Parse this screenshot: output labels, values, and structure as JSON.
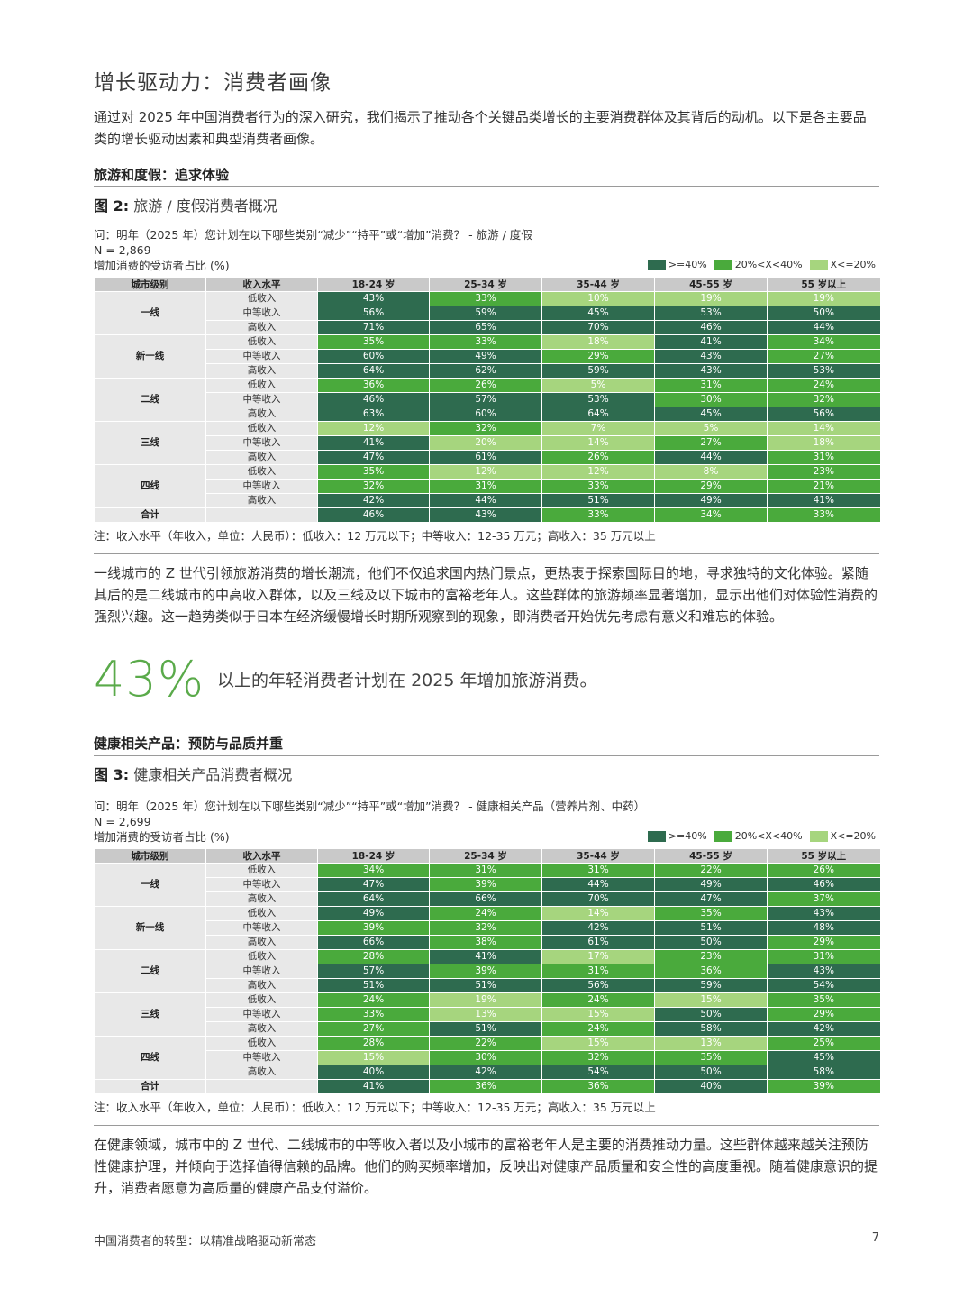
{
  "header": {
    "title": "增长驱动力：消费者画像"
  },
  "intro": "通过对 2025 年中国消费者行为的深入研究，我们揭示了推动各个关键品类增长的主要消费群体及其背后的动机。以下是各主要品类的增长驱动因素和典型消费者画像。",
  "legend": {
    "high": ">=40%",
    "mid": "20%<X<40%",
    "low": "X<=20%"
  },
  "colors": {
    "high": "#2e6b4f",
    "mid": "#4aaa3c",
    "low": "#a6d57e"
  },
  "table_headers": [
    "城市级别",
    "收入水平",
    "18-24 岁",
    "25-34 岁",
    "35-44 岁",
    "45-55 岁",
    "55 岁以上"
  ],
  "income_levels": [
    "低收入",
    "中等收入",
    "高收入"
  ],
  "cities": [
    "一线",
    "新一线",
    "二线",
    "三线",
    "四线"
  ],
  "total_label": "合计",
  "note": "注：收入水平（年收入，单位：人民币）：低收入：12 万元以下；中等收入：12-35 万元；高收入：35 万元以上",
  "section1": {
    "title": "旅游和度假：追求体验",
    "fig_label": "图 2:",
    "fig_title": "旅游 / 度假消费者概况",
    "question": "问：明年（2025 年）您计划在以下哪些类别“减少”“持平”或“增加”消费？ - 旅游 / 度假",
    "n": "N = 2,869",
    "metric": "增加消费的受访者占比 (%)",
    "rows": [
      [
        "43%",
        "33%",
        "10%",
        "19%",
        "19%"
      ],
      [
        "56%",
        "59%",
        "45%",
        "53%",
        "50%"
      ],
      [
        "71%",
        "65%",
        "70%",
        "46%",
        "44%"
      ],
      [
        "35%",
        "33%",
        "18%",
        "41%",
        "34%"
      ],
      [
        "60%",
        "49%",
        "29%",
        "43%",
        "27%"
      ],
      [
        "64%",
        "62%",
        "59%",
        "43%",
        "53%"
      ],
      [
        "36%",
        "26%",
        "5%",
        "31%",
        "24%"
      ],
      [
        "46%",
        "57%",
        "53%",
        "30%",
        "32%"
      ],
      [
        "63%",
        "60%",
        "64%",
        "45%",
        "56%"
      ],
      [
        "12%",
        "32%",
        "7%",
        "5%",
        "14%"
      ],
      [
        "41%",
        "20%",
        "14%",
        "27%",
        "18%"
      ],
      [
        "47%",
        "61%",
        "26%",
        "44%",
        "31%"
      ],
      [
        "35%",
        "12%",
        "12%",
        "8%",
        "23%"
      ],
      [
        "32%",
        "31%",
        "33%",
        "29%",
        "21%"
      ],
      [
        "42%",
        "44%",
        "51%",
        "49%",
        "41%"
      ]
    ],
    "total": [
      "46%",
      "43%",
      "33%",
      "34%",
      "33%"
    ],
    "body": "一线城市的 Z 世代引领旅游消费的增长潮流，他们不仅追求国内热门景点，更热衷于探索国际目的地，寻求独特的文化体验。紧随其后的是二线城市的中高收入群体，以及三线及以下城市的富裕老年人。这些群体的旅游频率显著增加，显示出他们对体验性消费的强烈兴趣。这一趋势类似于日本在经济缓慢增长时期所观察到的现象，即消费者开始优先考虑有意义和难忘的体验。",
    "stat_num": "43%",
    "stat_text": "以上的年轻消费者计划在 2025 年增加旅游消费。"
  },
  "section2": {
    "title": "健康相关产品：预防与品质并重",
    "fig_label": "图 3:",
    "fig_title": "健康相关产品消费者概况",
    "question": "问：明年（2025 年）您计划在以下哪些类别“减少”“持平”或“增加”消费？ - 健康相关产品（营养片剂、中药）",
    "n": "N = 2,699",
    "metric": "增加消费的受访者占比 (%)",
    "rows": [
      [
        "34%",
        "31%",
        "31%",
        "22%",
        "26%"
      ],
      [
        "47%",
        "39%",
        "44%",
        "49%",
        "46%"
      ],
      [
        "64%",
        "66%",
        "70%",
        "47%",
        "37%"
      ],
      [
        "49%",
        "24%",
        "14%",
        "35%",
        "43%"
      ],
      [
        "39%",
        "32%",
        "42%",
        "51%",
        "48%"
      ],
      [
        "66%",
        "38%",
        "61%",
        "50%",
        "29%"
      ],
      [
        "28%",
        "41%",
        "17%",
        "23%",
        "31%"
      ],
      [
        "57%",
        "39%",
        "31%",
        "36%",
        "43%"
      ],
      [
        "51%",
        "51%",
        "56%",
        "59%",
        "54%"
      ],
      [
        "24%",
        "19%",
        "24%",
        "15%",
        "35%"
      ],
      [
        "33%",
        "13%",
        "15%",
        "50%",
        "29%"
      ],
      [
        "27%",
        "51%",
        "24%",
        "58%",
        "42%"
      ],
      [
        "28%",
        "22%",
        "15%",
        "13%",
        "25%"
      ],
      [
        "15%",
        "30%",
        "32%",
        "35%",
        "45%"
      ],
      [
        "40%",
        "42%",
        "54%",
        "50%",
        "58%"
      ]
    ],
    "total": [
      "41%",
      "36%",
      "36%",
      "40%",
      "39%"
    ],
    "body": "在健康领域，城市中的 Z 世代、二线城市的中等收入者以及小城市的富裕老年人是主要的消费推动力量。这些群体越来越关注预防性健康护理，并倾向于选择值得信赖的品牌。他们的购买频率增加，反映出对健康产品质量和安全性的高度重视。随着健康意识的提升，消费者愿意为高质量的健康产品支付溢价。"
  },
  "footer": {
    "text": "中国消费者的转型：以精准战略驱动新常态",
    "page": "7"
  }
}
